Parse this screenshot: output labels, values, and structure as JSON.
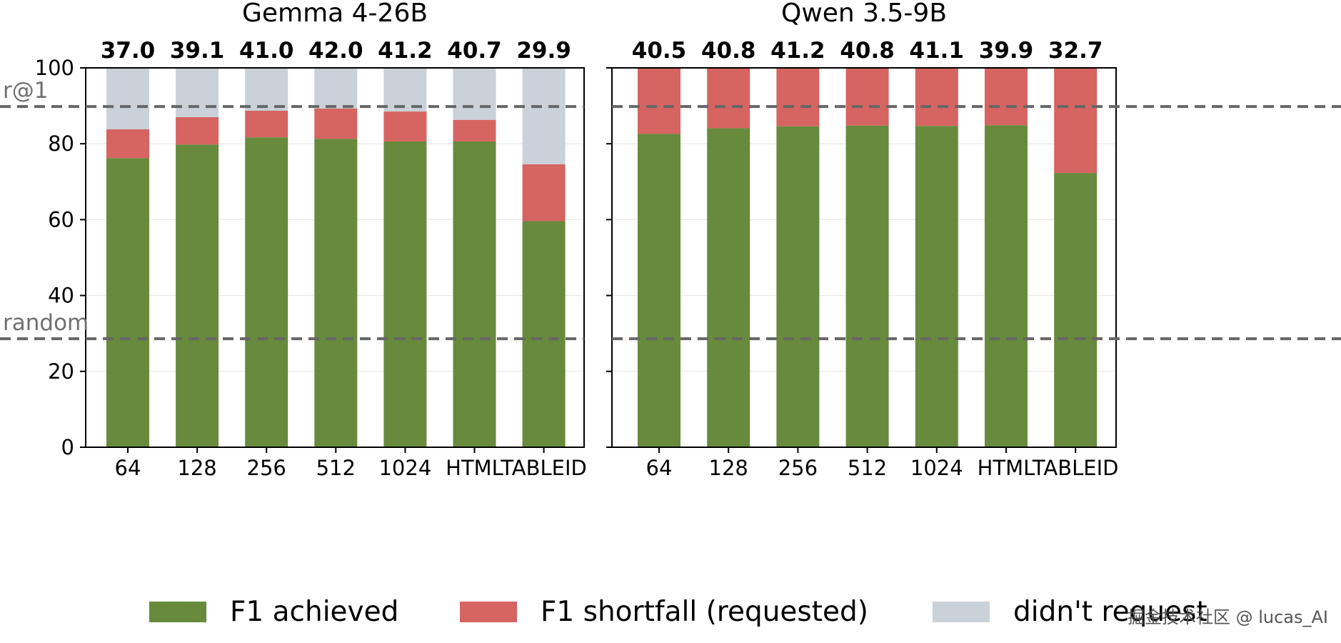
{
  "chart_data": [
    {
      "type": "bar",
      "stacked": true,
      "title": "Gemma 4-26B",
      "categories": [
        "64",
        "128",
        "256",
        "512",
        "1024",
        "HTML",
        "TABLEID"
      ],
      "top_labels": [
        "37.0",
        "39.1",
        "41.0",
        "42.0",
        "41.2",
        "40.7",
        "29.9"
      ],
      "series": [
        {
          "name": "F1 achieved",
          "values": [
            76.2,
            79.8,
            81.7,
            81.3,
            80.6,
            80.6,
            59.6
          ]
        },
        {
          "name": "F1 shortfall (requested)",
          "values": [
            7.6,
            7.2,
            7.0,
            8.0,
            7.9,
            5.7,
            15.0
          ]
        },
        {
          "name": "didn't request",
          "values": [
            16.2,
            13.0,
            11.3,
            10.7,
            11.5,
            13.7,
            25.4
          ]
        }
      ],
      "ylim": [
        0,
        100
      ],
      "yticks": [
        "0",
        "20",
        "40",
        "60",
        "80",
        "100"
      ],
      "reference_lines": [
        {
          "label": "r@1",
          "value": 89.8
        },
        {
          "label": "random",
          "value": 28.6
        }
      ],
      "grid": true
    },
    {
      "type": "bar",
      "stacked": true,
      "title": "Qwen 3.5-9B",
      "categories": [
        "64",
        "128",
        "256",
        "512",
        "1024",
        "HTML",
        "TABLEID"
      ],
      "top_labels": [
        "40.5",
        "40.8",
        "41.2",
        "40.8",
        "41.1",
        "39.9",
        "32.7"
      ],
      "series": [
        {
          "name": "F1 achieved",
          "values": [
            82.6,
            84.1,
            84.6,
            84.8,
            84.7,
            84.9,
            72.3
          ]
        },
        {
          "name": "F1 shortfall (requested)",
          "values": [
            17.4,
            15.9,
            15.4,
            15.2,
            15.3,
            15.1,
            27.7
          ]
        },
        {
          "name": "didn't request",
          "values": [
            0,
            0,
            0,
            0,
            0,
            0,
            0
          ]
        }
      ],
      "ylim": [
        0,
        100
      ],
      "reference_lines": [
        {
          "value": 89.8
        },
        {
          "value": 28.6
        }
      ],
      "grid": true
    }
  ],
  "legend": {
    "position": "bottom",
    "items": [
      {
        "label": "F1 achieved",
        "color": "#678a3c"
      },
      {
        "label": "F1 shortfall (requested)",
        "color": "#d66461"
      },
      {
        "label": "didn't request",
        "color": "#cad1d8"
      }
    ]
  },
  "colors": {
    "achieved": "#678a3c",
    "shortfall": "#d66461",
    "didnt_request": "#cad1d8",
    "reference_line": "#666666",
    "grid": "#e6e6e6"
  },
  "watermark": "掘金技术社区 @ lucas_AI"
}
